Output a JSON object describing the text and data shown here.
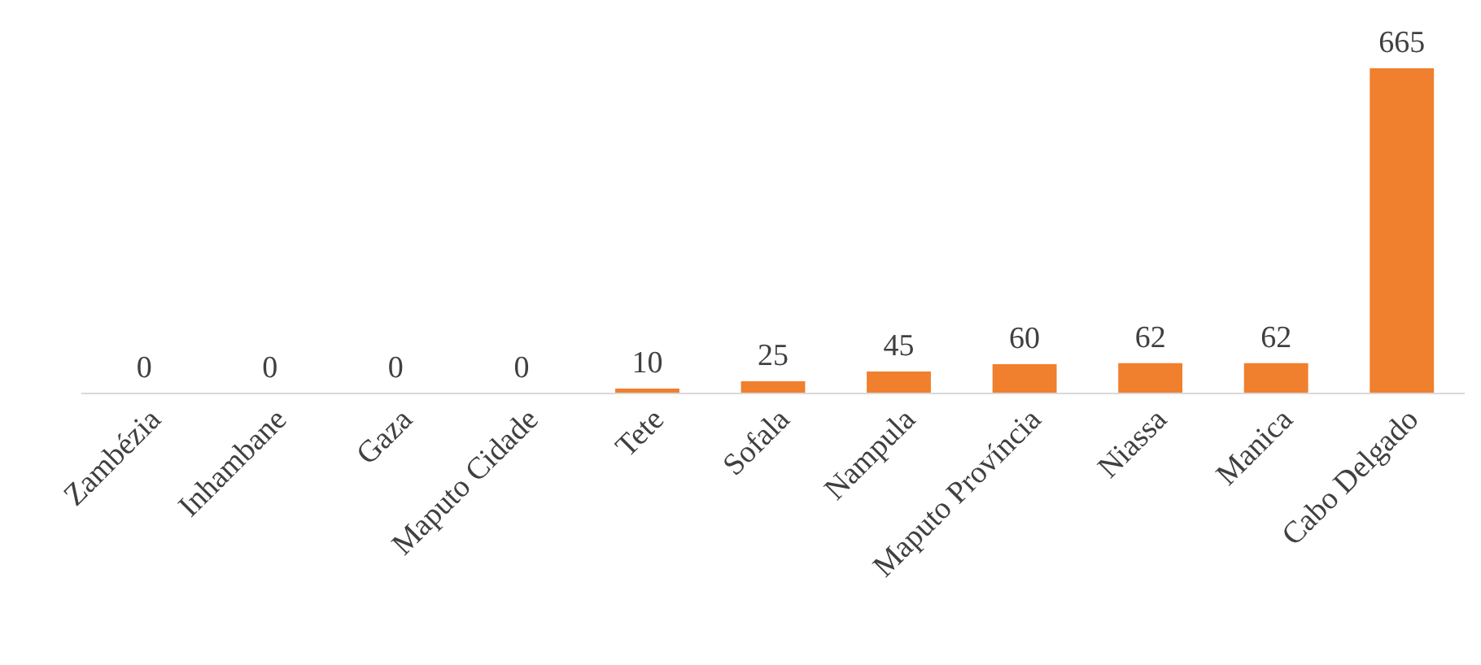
{
  "chart_data": {
    "type": "bar",
    "categories": [
      "Zambézia",
      "Inhambane",
      "Gaza",
      "Maputo Cidade",
      "Tete",
      "Sofala",
      "Nampula",
      "Maputo Província",
      "Niassa",
      "Manica",
      "Cabo Delgado"
    ],
    "values": [
      0,
      0,
      0,
      0,
      10,
      25,
      45,
      60,
      62,
      62,
      665
    ],
    "color": "#f07f2e",
    "data_labels": true
  }
}
